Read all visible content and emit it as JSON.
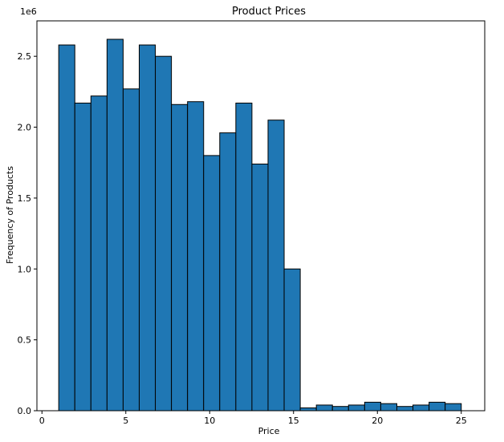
{
  "chart_data": {
    "type": "bar",
    "title": "Product Prices",
    "xlabel": "Price",
    "ylabel": "Frequency of Products",
    "y_multiplier_label": "1e6",
    "xlim": [
      -0.3,
      26.4
    ],
    "ylim": [
      0,
      2.75
    ],
    "x_ticks": [
      0,
      5,
      10,
      15,
      20,
      25
    ],
    "x_tick_labels": [
      "0",
      "5",
      "10",
      "15",
      "20",
      "25"
    ],
    "y_ticks": [
      0.0,
      0.5,
      1.0,
      1.5,
      2.0,
      2.5
    ],
    "y_tick_labels": [
      "0.0",
      "0.5",
      "1.0",
      "1.5",
      "2.0",
      "2.5"
    ],
    "bin_edges": [
      1.0,
      1.96,
      2.92,
      3.88,
      4.84,
      5.8,
      6.76,
      7.72,
      8.68,
      9.64,
      10.6,
      11.56,
      12.52,
      13.48,
      14.44,
      15.4,
      16.36,
      17.32,
      18.28,
      19.24,
      20.2,
      21.16,
      22.12,
      23.08,
      24.04,
      25.0
    ],
    "values": [
      2.58,
      2.17,
      2.22,
      2.62,
      2.27,
      2.58,
      2.5,
      2.16,
      2.18,
      1.8,
      1.96,
      2.17,
      1.74,
      2.05,
      1.0,
      0.02,
      0.04,
      0.03,
      0.04,
      0.06,
      0.05,
      0.03,
      0.04,
      0.06,
      0.05
    ],
    "bar_color": "#1f77b4",
    "edge_color": "#000000",
    "grid": false,
    "legend": false
  }
}
